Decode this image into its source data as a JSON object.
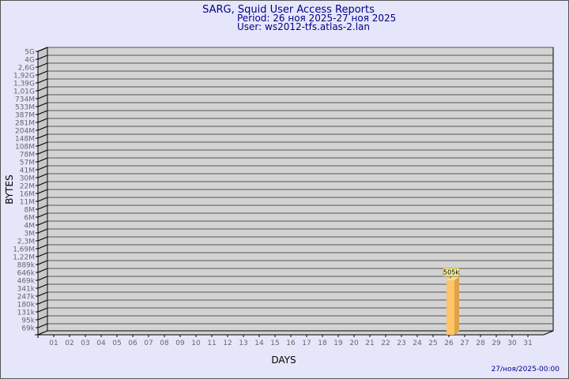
{
  "title": "SARG, Squid User Access Reports",
  "period": "Period: 26 ноя 2025-27 ноя 2025",
  "user": "User: ws2012-tfs.atlas-2.lan",
  "footer_timestamp": "27/ноя/2025-00:00",
  "colors": {
    "background": "#e6e6fa",
    "title": "#00008b",
    "plot": "#d3d3d3",
    "bar_front": "#ffc468",
    "bar_side": "#e0a248",
    "bar_top": "#ffe08a",
    "label_box": "#f5f0a0"
  },
  "chart_data": {
    "type": "bar",
    "xlabel": "DAYS",
    "ylabel": "BYTES",
    "grid": true,
    "y_scale": "log",
    "y_tick_labels": [
      "5G",
      "4G",
      "2,6G",
      "1,92G",
      "1,39G",
      "1,01G",
      "734M",
      "533M",
      "387M",
      "281M",
      "204M",
      "148M",
      "108M",
      "78M",
      "57M",
      "41M",
      "30M",
      "22M",
      "16M",
      "11M",
      "8M",
      "6M",
      "4M",
      "3M",
      "2,3M",
      "1,69M",
      "1,22M",
      "889k",
      "646k",
      "469k",
      "341k",
      "247k",
      "180k",
      "131k",
      "95k",
      "69k"
    ],
    "y_tick_values": [
      5000000000,
      4000000000,
      2600000000,
      1920000000,
      1390000000,
      1010000000,
      734000000,
      533000000,
      387000000,
      281000000,
      204000000,
      148000000,
      108000000,
      78000000,
      57000000,
      41000000,
      30000000,
      22000000,
      16000000,
      11000000,
      8000000,
      6000000,
      4000000,
      3000000,
      2300000,
      1690000,
      1220000,
      889000,
      646000,
      469000,
      341000,
      247000,
      180000,
      131000,
      95000,
      69000
    ],
    "categories": [
      "01",
      "02",
      "03",
      "04",
      "05",
      "06",
      "07",
      "08",
      "09",
      "10",
      "11",
      "12",
      "13",
      "14",
      "15",
      "16",
      "17",
      "18",
      "19",
      "20",
      "21",
      "22",
      "23",
      "24",
      "25",
      "26",
      "27",
      "28",
      "29",
      "30",
      "31"
    ],
    "bars": [
      {
        "day": "26",
        "value": 505000,
        "label": "505k"
      }
    ]
  }
}
